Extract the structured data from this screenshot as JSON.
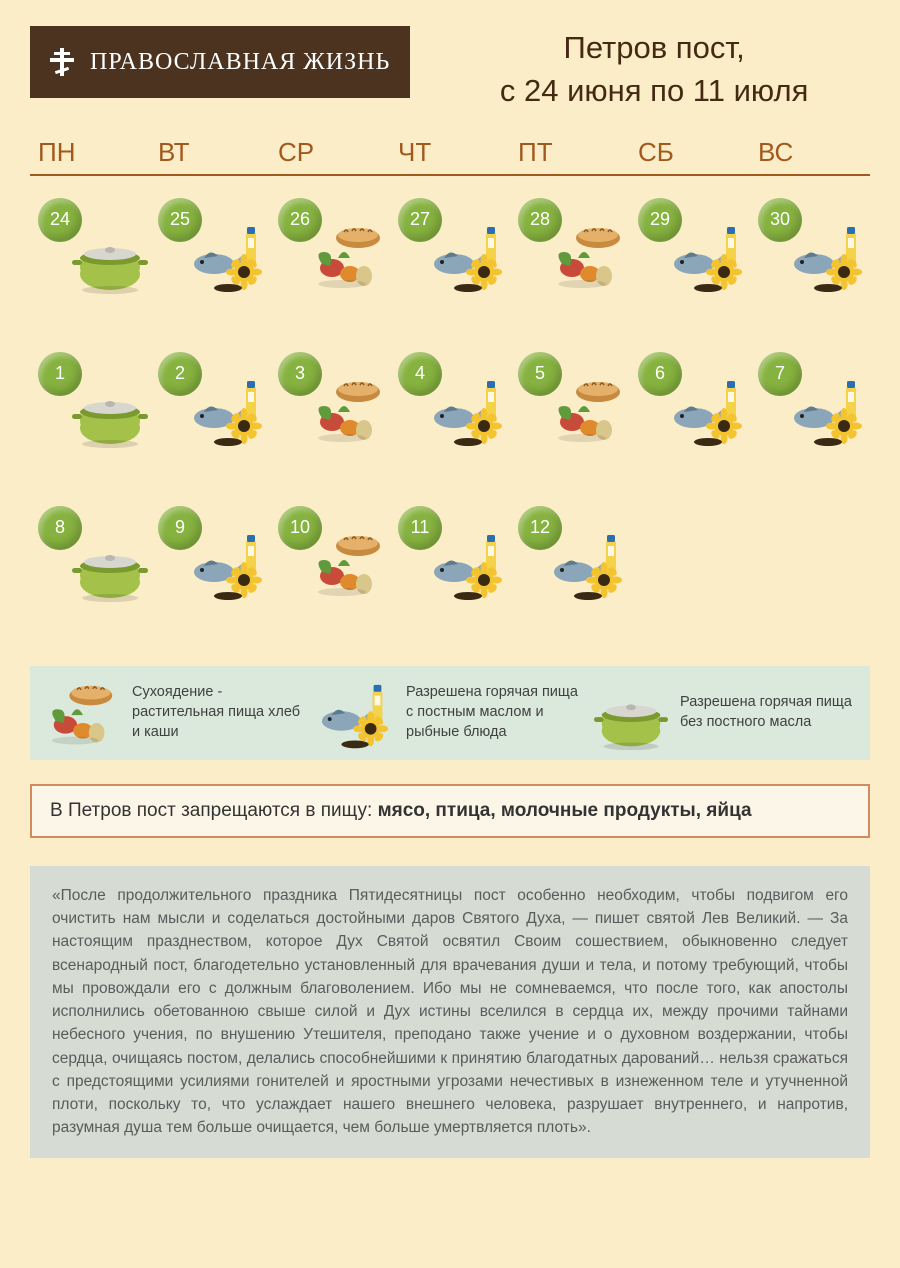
{
  "colors": {
    "page_bg": "#fbedc8",
    "logo_bg": "#4b3320",
    "title_text": "#452a13",
    "day_header_text": "#a15a1e",
    "day_header_border": "#a15a1e",
    "badge_bg": "#86b23f",
    "legend_bg": "#dbe9dc",
    "prohibit_border": "#d28b5e",
    "prohibit_bg": "#fcf6e8",
    "quote_bg": "#d6dbd4",
    "pot_body": "#a4c24a",
    "pot_dark": "#7a9a2f",
    "pot_lid": "#d7d7cf",
    "fish_body": "#8aa6b8",
    "fish_dark": "#5c7b8f",
    "oil_bottle": "#f4d24a",
    "oil_cap": "#2b6fb3",
    "sunflower_petal": "#f4c430",
    "sunflower_center": "#3a2a14",
    "bread": "#c88a3e",
    "bread_top": "#e4b06a",
    "veg_green": "#5f9a3c",
    "veg_red": "#c84b3a",
    "veg_orange": "#e08a2e"
  },
  "logo_text": "ПРАВОСЛАВНАЯ ЖИЗНЬ",
  "title_line1": "Петров пост,",
  "title_line2": "с 24 июня по 11 июля",
  "day_headers": [
    "ПН",
    "ВТ",
    "СР",
    "ЧТ",
    "ПТ",
    "СБ",
    "ВС"
  ],
  "weeks": [
    [
      {
        "n": "24",
        "type": "pot"
      },
      {
        "n": "25",
        "type": "fish"
      },
      {
        "n": "26",
        "type": "dry"
      },
      {
        "n": "27",
        "type": "fish"
      },
      {
        "n": "28",
        "type": "dry"
      },
      {
        "n": "29",
        "type": "fish"
      },
      {
        "n": "30",
        "type": "fish"
      }
    ],
    [
      {
        "n": "1",
        "type": "pot"
      },
      {
        "n": "2",
        "type": "fish"
      },
      {
        "n": "3",
        "type": "dry"
      },
      {
        "n": "4",
        "type": "fish"
      },
      {
        "n": "5",
        "type": "dry"
      },
      {
        "n": "6",
        "type": "fish"
      },
      {
        "n": "7",
        "type": "fish"
      }
    ],
    [
      {
        "n": "8",
        "type": "pot"
      },
      {
        "n": "9",
        "type": "fish"
      },
      {
        "n": "10",
        "type": "dry"
      },
      {
        "n": "11",
        "type": "fish"
      },
      {
        "n": "12",
        "type": "fish"
      },
      null,
      null
    ]
  ],
  "legend": [
    {
      "type": "dry",
      "text": "Сухоядение - растительная пища хлеб и каши"
    },
    {
      "type": "fish",
      "text": "Разрешена горячая пища с постным маслом и рыбные блюда"
    },
    {
      "type": "pot",
      "text": "Разрешена горячая пища без постного масла"
    }
  ],
  "prohibit_prefix": "В Петров пост  запрещаются в пищу:  ",
  "prohibit_items": "мясо, птица, молочные продукты, яйца",
  "quote": "«После продолжительного праздника Пятидесятницы пост особенно необходим, чтобы подвигом его очистить нам мысли и соделаться достойными даров Святого Духа, — пишет святой Лев Великий. — За настоящим празднеством, которое Дух Святой освятил Своим сошествием, обыкновенно следует всенародный пост, благодетельно установленный для врачевания души и тела, и потому требующий, чтобы мы провождали его с должным благоволением. Ибо мы не сомневаемся, что после того, как апостолы исполнились обетованною свыше силой и Дух истины вселился в сердца их, между прочими тайнами небесного учения, по внушению Утешителя, преподано также учение и о духовном воздержании, чтобы сердца, очищаясь постом, делались способнейшими к принятию благодатных дарований… нельзя сражаться с предстоящими усилиями гонителей и яростными угрозами нечестивых в изнеженном теле и утучненной плоти, поскольку то, что услаждает нашего внешнего человека, разрушает внутреннего, и напротив, разумная душа тем больше очищается, чем больше умертвляется плоть»."
}
